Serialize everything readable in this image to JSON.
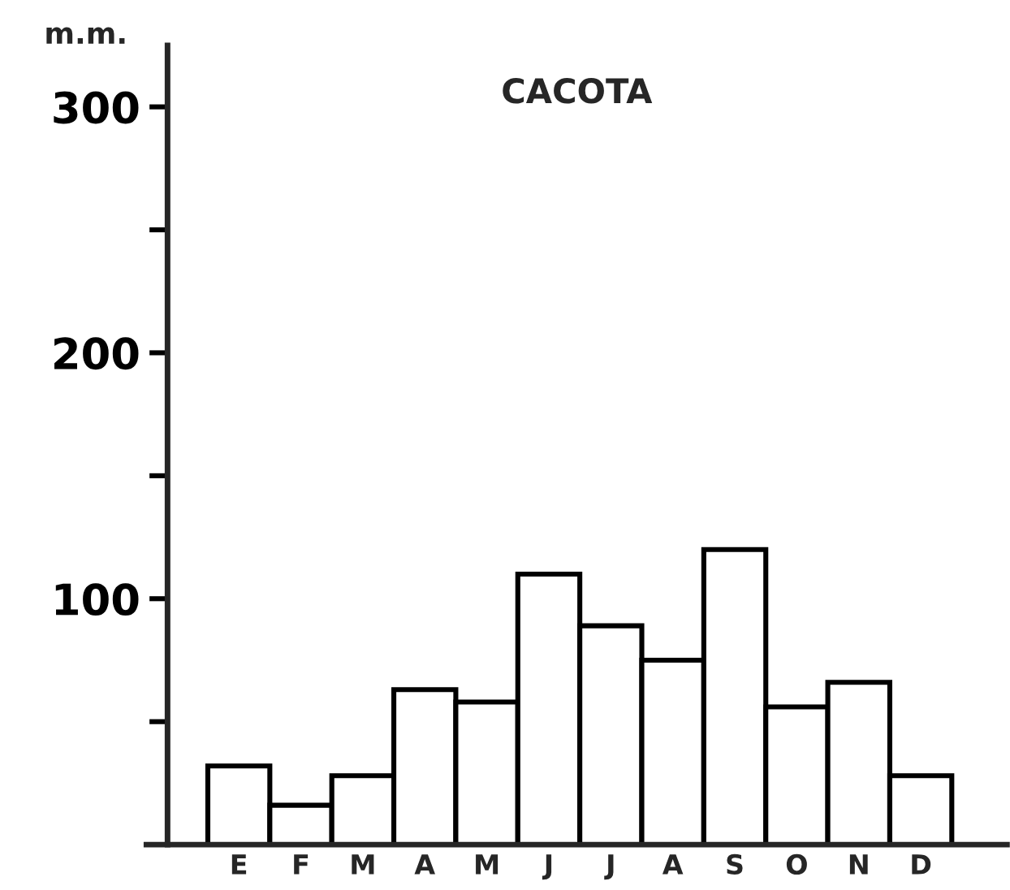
{
  "chart_data": {
    "type": "bar",
    "title": "CACOTA",
    "ylabel": "m.m.",
    "categories": [
      "E",
      "F",
      "M",
      "A",
      "M",
      "J",
      "J",
      "A",
      "S",
      "O",
      "N",
      "D"
    ],
    "values": [
      32,
      16,
      28,
      63,
      58,
      110,
      89,
      75,
      120,
      56,
      66,
      28
    ],
    "color": "#ffffff",
    "ylim": [
      0,
      325
    ],
    "yticks": [
      {
        "value": 50,
        "label": null
      },
      100,
      {
        "value": 150,
        "label": null
      },
      200,
      {
        "value": 250,
        "label": null
      },
      300
    ],
    "grid": false,
    "legend": false
  }
}
